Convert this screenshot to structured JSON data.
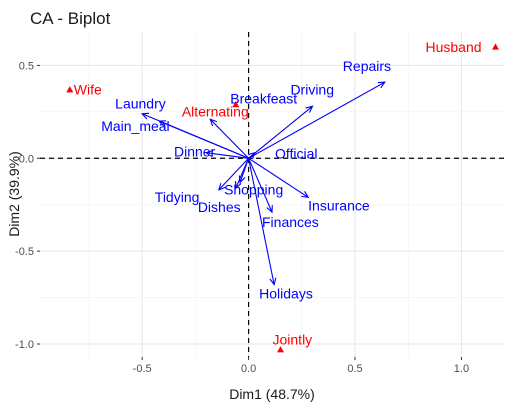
{
  "chart_data": {
    "type": "scatter",
    "title": "CA - Biplot",
    "xlabel": "Dim1 (48.7%)",
    "ylabel": "Dim2 (39.9%)",
    "xlim": [
      -0.98,
      1.2
    ],
    "ylim": [
      -1.07,
      0.68
    ],
    "xticks": [
      -0.5,
      0.0,
      0.5,
      1.0
    ],
    "xtick_labels": [
      "-0.5",
      "0.0",
      "0.5",
      "1.0"
    ],
    "yticks": [
      -1.0,
      -0.5,
      0.0,
      0.5
    ],
    "ytick_labels": [
      "-1.0",
      "-0.5",
      "0.0",
      "0.5"
    ],
    "grid": true,
    "reference_lines": [
      {
        "axis": "x",
        "value": 0,
        "style": "dashed"
      },
      {
        "axis": "y",
        "value": 0,
        "style": "dashed"
      }
    ],
    "columns": {
      "color": "#ff0000",
      "marker": "triangle",
      "points": [
        {
          "label": "Wife",
          "x": -0.84,
          "y": 0.37
        },
        {
          "label": "Alternating",
          "x": -0.06,
          "y": 0.29
        },
        {
          "label": "Husband",
          "x": 1.16,
          "y": 0.6
        },
        {
          "label": "Jointly",
          "x": 0.15,
          "y": -1.03
        }
      ]
    },
    "rows": {
      "color": "#0000ff",
      "marker": "arrow",
      "arrows": [
        {
          "label": "Laundry",
          "x": -0.5,
          "y": 0.24
        },
        {
          "label": "Main_meal",
          "x": -0.42,
          "y": 0.2
        },
        {
          "label": "Dinner",
          "x": -0.2,
          "y": 0.03
        },
        {
          "label": "Breakfeast",
          "x": -0.18,
          "y": 0.21
        },
        {
          "label": "Tidying",
          "x": -0.14,
          "y": -0.17
        },
        {
          "label": "Dishes",
          "x": -0.06,
          "y": -0.16
        },
        {
          "label": "Shopping",
          "x": -0.04,
          "y": -0.13
        },
        {
          "label": "Official",
          "x": 0.03,
          "y": 0.03
        },
        {
          "label": "Driving",
          "x": 0.3,
          "y": 0.28
        },
        {
          "label": "Repairs",
          "x": 0.64,
          "y": 0.41
        },
        {
          "label": "Insurance",
          "x": 0.28,
          "y": -0.21
        },
        {
          "label": "Finances",
          "x": 0.11,
          "y": -0.29
        },
        {
          "label": "Holidays",
          "x": 0.12,
          "y": -0.68
        }
      ]
    }
  }
}
